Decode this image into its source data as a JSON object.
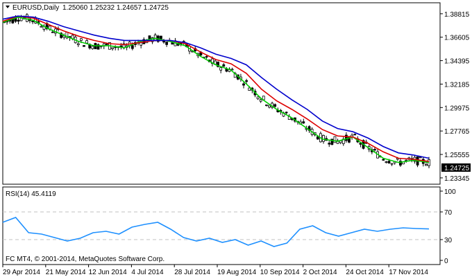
{
  "header": {
    "symbol": "EURUSD,Daily",
    "ohlc": "1.25060 1.25232 1.24657 1.24725"
  },
  "rsi_label": "RSI(14) 45.4119",
  "copyright": "FC MT4, © 2001-2014, MetaQuotes Software Corp.",
  "current_price_label": "1.24725",
  "colors": {
    "background": "#ffffff",
    "candle": "#000000",
    "ma_fast": "#00cc00",
    "ma_mid": "#dd0000",
    "ma_slow": "#0000cc",
    "rsi_line": "#1e90ff",
    "level_line": "#c0c0c0"
  },
  "chart_data": [
    {
      "type": "candlestick",
      "title": "EURUSD,Daily",
      "y_ticks": [
        "1.38815",
        "1.36605",
        "1.34395",
        "1.32185",
        "1.29975",
        "1.27765",
        "1.25555",
        "1.23345"
      ],
      "ylim": [
        1.2275,
        1.3985
      ],
      "x_ticks": [
        "29 Apr 2014",
        "21 May 2014",
        "12 Jun 2014",
        "4 Jul 2014",
        "28 Jul 2014",
        "19 Aug 2014",
        "10 Sep 2014",
        "2 Oct 2014",
        "24 Oct 2014",
        "17 Nov 2014"
      ],
      "series": [
        {
          "name": "",
          "color": "#00cc00",
          "values": [
            1.38,
            1.385,
            1.382,
            1.374,
            1.368,
            1.362,
            1.358,
            1.358,
            1.356,
            1.362,
            1.365,
            1.362,
            1.358,
            1.348,
            1.34,
            1.335,
            1.322,
            1.308,
            1.298,
            1.29,
            1.28,
            1.27,
            1.268,
            1.272,
            1.262,
            1.252,
            1.248,
            1.25,
            1.248
          ]
        },
        {
          "name": "",
          "color": "#dd0000",
          "values": [
            1.381,
            1.386,
            1.384,
            1.378,
            1.372,
            1.367,
            1.363,
            1.36,
            1.359,
            1.361,
            1.363,
            1.363,
            1.36,
            1.352,
            1.345,
            1.341,
            1.332,
            1.317,
            1.306,
            1.298,
            1.289,
            1.279,
            1.273,
            1.272,
            1.266,
            1.258,
            1.252,
            1.251,
            1.249
          ]
        },
        {
          "name": "",
          "color": "#0000cc",
          "values": [
            1.383,
            1.386,
            1.385,
            1.381,
            1.376,
            1.372,
            1.368,
            1.365,
            1.363,
            1.363,
            1.363,
            1.363,
            1.361,
            1.356,
            1.35,
            1.346,
            1.34,
            1.328,
            1.317,
            1.307,
            1.298,
            1.287,
            1.28,
            1.277,
            1.271,
            1.263,
            1.257,
            1.255,
            1.252
          ]
        }
      ]
    },
    {
      "type": "line",
      "title": "RSI(14) 45.4119",
      "y_ticks": [
        "100",
        "70",
        "30",
        "0"
      ],
      "ylim": [
        0,
        100
      ],
      "levels": [
        70,
        30
      ],
      "series": [
        {
          "name": "",
          "color": "#1e90ff",
          "values": [
            55,
            62,
            40,
            38,
            33,
            28,
            32,
            40,
            42,
            38,
            48,
            52,
            55,
            45,
            33,
            28,
            32,
            26,
            30,
            22,
            28,
            20,
            25,
            45,
            50,
            40,
            35,
            40,
            45,
            42,
            45,
            47,
            46,
            45.41
          ]
        }
      ]
    }
  ]
}
